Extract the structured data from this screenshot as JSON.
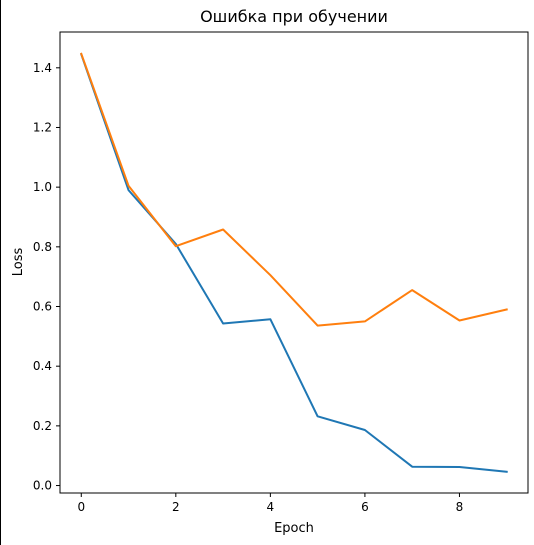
{
  "chart_data": {
    "type": "line",
    "title": "Ошибка при обучении",
    "xlabel": "Epoch",
    "ylabel": "Loss",
    "xlim": [
      -0.45,
      9.45
    ],
    "ylim": [
      -0.025,
      1.52
    ],
    "xticks": [
      0,
      2,
      4,
      6,
      8
    ],
    "xtick_labels": [
      "0",
      "2",
      "4",
      "6",
      "8"
    ],
    "yticks": [
      0.0,
      0.2,
      0.4,
      0.6,
      0.8,
      1.0,
      1.2,
      1.4
    ],
    "ytick_labels": [
      "0.0",
      "0.2",
      "0.4",
      "0.6",
      "0.8",
      "1.0",
      "1.2",
      "1.4"
    ],
    "grid": false,
    "x": [
      0,
      1,
      2,
      3,
      4,
      5,
      6,
      7,
      8,
      9
    ],
    "series": [
      {
        "color": "#1f77b4",
        "values": [
          1.445,
          0.99,
          0.81,
          0.543,
          0.557,
          0.232,
          0.186,
          0.063,
          0.062,
          0.046
        ]
      },
      {
        "color": "#ff7f0e",
        "values": [
          1.447,
          1.005,
          0.802,
          0.858,
          0.705,
          0.536,
          0.55,
          0.655,
          0.553,
          0.59
        ]
      }
    ]
  }
}
